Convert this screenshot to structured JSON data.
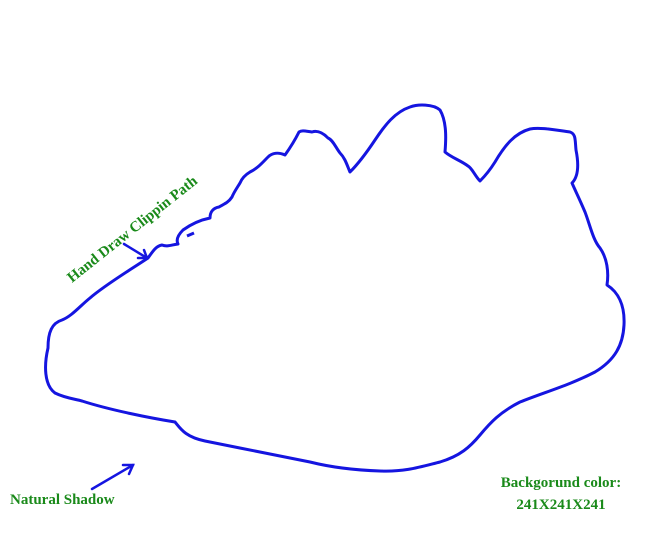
{
  "annotations": [
    {
      "label": "Hand Draw Clippin Path"
    },
    {
      "label": "Natural Shadow"
    }
  ],
  "note": {
    "lines": [
      "Backgorund color:",
      "241X241X241"
    ]
  }
}
